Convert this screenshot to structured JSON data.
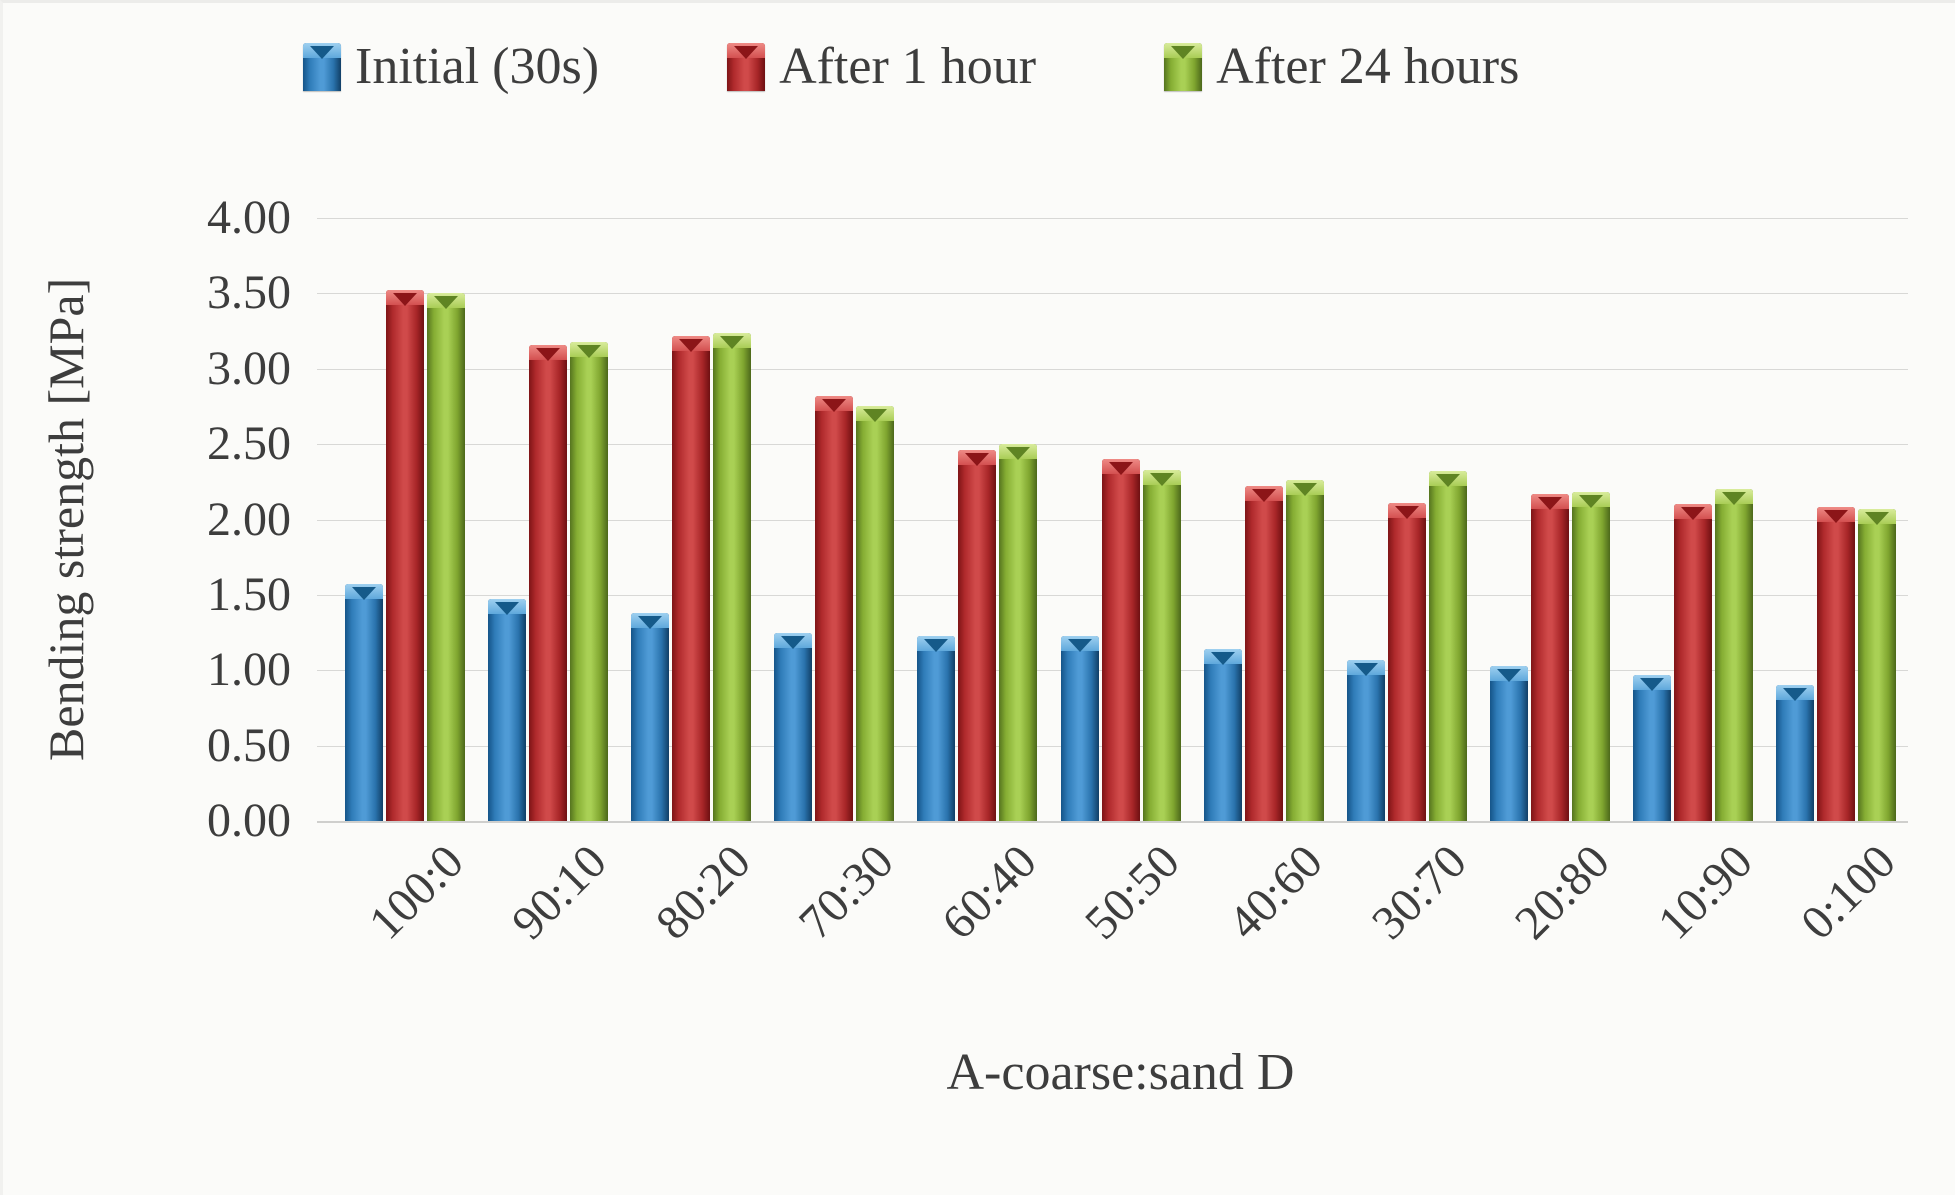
{
  "page": {
    "background": "#fbfbf9",
    "text_color": "#3d3d3d"
  },
  "legend": {
    "position": "top",
    "items": [
      {
        "label": "Initial (30s)",
        "color": "#2e75b6"
      },
      {
        "label": "After 1 hour",
        "color": "#b02a2c"
      },
      {
        "label": "After 24 hours",
        "color": "#8db33a"
      }
    ]
  },
  "chart_data": {
    "type": "bar",
    "categories": [
      "100:0",
      "90:10",
      "80:20",
      "70:30",
      "60:40",
      "50:50",
      "40:60",
      "30:70",
      "20:80",
      "10:90",
      "0:100"
    ],
    "series": [
      {
        "name": "Initial (30s)",
        "color": "#2e75b6",
        "values": [
          1.57,
          1.47,
          1.38,
          1.25,
          1.23,
          1.23,
          1.14,
          1.07,
          1.03,
          0.97,
          0.9
        ]
      },
      {
        "name": "After 1 hour",
        "color": "#b02a2c",
        "values": [
          3.52,
          3.16,
          3.22,
          2.82,
          2.46,
          2.4,
          2.22,
          2.11,
          2.17,
          2.1,
          2.08
        ]
      },
      {
        "name": "After 24 hours",
        "color": "#8db33a",
        "values": [
          3.5,
          3.18,
          3.24,
          2.75,
          2.5,
          2.33,
          2.26,
          2.32,
          2.18,
          2.2,
          2.07
        ]
      }
    ],
    "xlabel": "A-coarse:sand D",
    "ylabel": "Bending strength [MPa]",
    "ylim": [
      0,
      4
    ],
    "ytick_step": 0.5,
    "ytick_labels": [
      "4.00",
      "3.50",
      "3.00",
      "2.50",
      "2.00",
      "1.50",
      "1.00",
      "0.50",
      "0.00"
    ],
    "grid": true,
    "legend_position": "top"
  }
}
